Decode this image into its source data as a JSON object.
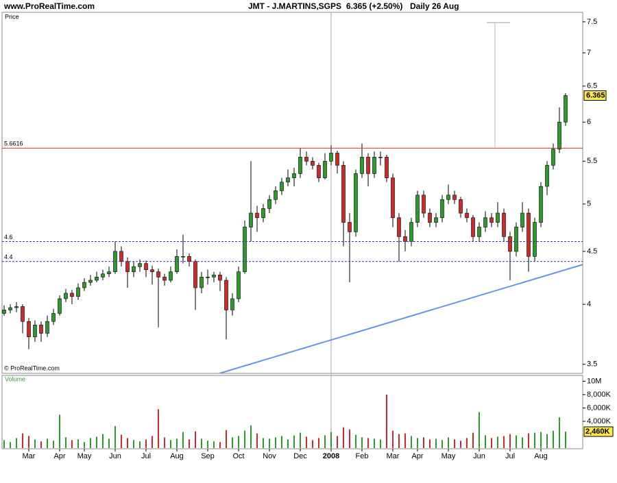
{
  "header": {
    "site": "www.ProRealTime.com",
    "symbol": "JMT - J.MARTINS,SGPS",
    "change": "6.365 (+2.50%)",
    "period": "Daily  26 Aug"
  },
  "chart_data": {
    "type": "candlestick",
    "price_label": "Price",
    "volume_label": "Volume",
    "copyright": "© ProRealTime.com",
    "categories": [
      null,
      null,
      null,
      null,
      "Mar",
      null,
      null,
      null,
      null,
      "Apr",
      null,
      null,
      null,
      "May",
      null,
      null,
      null,
      null,
      "Jun",
      null,
      null,
      null,
      null,
      "Jul",
      null,
      null,
      null,
      null,
      "Aug",
      null,
      null,
      null,
      null,
      "Sep",
      null,
      null,
      null,
      null,
      "Oct",
      null,
      null,
      null,
      null,
      "Nov",
      null,
      null,
      null,
      null,
      "Dec",
      null,
      null,
      null,
      null,
      "2008",
      null,
      null,
      null,
      null,
      "Feb",
      null,
      null,
      null,
      null,
      "Mar",
      null,
      null,
      null,
      "Apr",
      null,
      null,
      null,
      null,
      "May",
      null,
      null,
      null,
      null,
      "Jun",
      null,
      null,
      null,
      null,
      "Jul",
      null,
      null,
      null,
      null,
      "Aug",
      null,
      null,
      null,
      null
    ],
    "open": [
      3.92,
      3.95,
      3.97,
      3.98,
      3.85,
      3.72,
      3.82,
      3.75,
      3.85,
      3.92,
      4.05,
      4.1,
      4.07,
      4.15,
      4.2,
      4.22,
      4.25,
      4.28,
      4.3,
      4.5,
      4.4,
      4.3,
      4.35,
      4.38,
      4.32,
      4.3,
      4.25,
      4.22,
      4.3,
      4.45,
      4.45,
      4.4,
      4.15,
      4.25,
      4.25,
      4.27,
      4.22,
      3.95,
      4.05,
      4.3,
      4.75,
      4.9,
      4.85,
      4.95,
      5.05,
      5.15,
      5.25,
      5.3,
      5.35,
      5.55,
      5.5,
      5.45,
      5.3,
      5.5,
      5.6,
      5.45,
      4.8,
      4.7,
      5.35,
      5.55,
      5.35,
      5.55,
      5.55,
      5.3,
      4.85,
      4.65,
      4.6,
      4.8,
      5.1,
      4.9,
      4.8,
      4.85,
      5.05,
      5.1,
      5.05,
      4.9,
      4.85,
      4.65,
      4.75,
      4.85,
      4.8,
      4.9,
      4.65,
      4.5,
      4.75,
      4.9,
      4.45,
      4.8,
      5.2,
      5.45,
      5.65,
      6.0
    ],
    "high": [
      3.99,
      4.0,
      4.02,
      4.0,
      3.88,
      3.86,
      3.85,
      3.9,
      3.96,
      4.08,
      4.14,
      4.13,
      4.19,
      4.24,
      4.27,
      4.3,
      4.32,
      4.35,
      4.6,
      4.55,
      4.44,
      4.4,
      4.42,
      4.41,
      4.36,
      4.33,
      4.28,
      4.35,
      4.52,
      4.67,
      4.48,
      4.42,
      4.3,
      4.32,
      4.3,
      4.3,
      4.25,
      4.1,
      4.35,
      4.82,
      5.5,
      4.98,
      5.0,
      5.1,
      5.2,
      5.3,
      5.4,
      5.42,
      5.66,
      5.62,
      5.55,
      5.48,
      5.6,
      5.7,
      5.63,
      5.5,
      4.9,
      5.4,
      5.72,
      5.6,
      5.62,
      5.62,
      5.58,
      5.35,
      4.9,
      4.72,
      4.85,
      5.15,
      5.15,
      4.95,
      4.9,
      5.1,
      5.22,
      5.15,
      5.08,
      4.95,
      4.88,
      4.8,
      4.92,
      4.9,
      5.02,
      4.95,
      4.7,
      4.8,
      5.02,
      4.95,
      4.85,
      5.25,
      5.5,
      5.72,
      6.2,
      6.4
    ],
    "low": [
      3.9,
      3.92,
      3.93,
      3.75,
      3.62,
      3.68,
      3.68,
      3.72,
      3.82,
      3.9,
      4.02,
      4.0,
      4.04,
      4.12,
      4.17,
      4.2,
      4.22,
      4.25,
      4.28,
      4.35,
      4.15,
      4.25,
      4.3,
      4.25,
      4.18,
      3.8,
      4.17,
      4.2,
      4.28,
      4.38,
      4.35,
      3.95,
      4.1,
      4.18,
      4.2,
      4.12,
      3.7,
      3.9,
      4.02,
      4.28,
      4.6,
      4.7,
      4.8,
      4.9,
      5.0,
      5.1,
      5.2,
      5.2,
      5.3,
      5.45,
      5.4,
      5.25,
      5.28,
      5.45,
      5.35,
      4.55,
      4.2,
      4.65,
      5.3,
      5.2,
      5.3,
      5.45,
      5.25,
      4.75,
      4.4,
      4.5,
      4.55,
      4.75,
      4.85,
      4.75,
      4.75,
      4.8,
      5.0,
      5.0,
      4.85,
      4.8,
      4.6,
      4.6,
      4.7,
      4.75,
      4.75,
      4.6,
      4.22,
      4.45,
      4.7,
      4.3,
      4.4,
      4.75,
      5.1,
      5.4,
      5.6,
      5.95
    ],
    "close": [
      3.95,
      3.97,
      3.98,
      3.85,
      3.72,
      3.82,
      3.75,
      3.85,
      3.92,
      4.05,
      4.1,
      4.07,
      4.15,
      4.2,
      4.22,
      4.25,
      4.28,
      4.3,
      4.5,
      4.4,
      4.3,
      4.35,
      4.38,
      4.32,
      4.3,
      4.25,
      4.22,
      4.3,
      4.45,
      4.45,
      4.4,
      4.15,
      4.25,
      4.25,
      4.27,
      4.22,
      3.95,
      4.05,
      4.3,
      4.75,
      4.9,
      4.85,
      4.95,
      5.05,
      5.15,
      5.25,
      5.3,
      5.35,
      5.55,
      5.5,
      5.45,
      5.3,
      5.5,
      5.6,
      5.45,
      4.8,
      4.7,
      5.35,
      5.55,
      5.35,
      5.55,
      5.55,
      5.3,
      4.85,
      4.65,
      4.6,
      4.8,
      5.1,
      4.9,
      4.8,
      4.85,
      5.05,
      5.1,
      5.05,
      4.9,
      4.85,
      4.65,
      4.75,
      4.85,
      4.8,
      4.9,
      4.65,
      4.5,
      4.75,
      4.9,
      4.45,
      4.8,
      5.2,
      5.45,
      5.65,
      6.0,
      6.365
    ],
    "volume": [
      1200,
      900,
      1500,
      2200,
      1800,
      1300,
      1000,
      1400,
      1100,
      5000,
      1600,
      1200,
      1300,
      900,
      1500,
      1700,
      2100,
      1400,
      3300,
      2000,
      1500,
      1200,
      1000,
      1300,
      1800,
      5800,
      1600,
      1200,
      1400,
      2400,
      1300,
      2500,
      1400,
      1100,
      1000,
      900,
      2700,
      1600,
      1800,
      2600,
      3400,
      2200,
      1500,
      1400,
      1600,
      1800,
      1300,
      1900,
      2300,
      1700,
      1200,
      1500,
      1900,
      2400,
      1800,
      3100,
      2800,
      2000,
      1600,
      1500,
      1400,
      1300,
      8000,
      2600,
      2100,
      2200,
      1800,
      1500,
      1600,
      1300,
      1400,
      1200,
      1600,
      1300,
      1100,
      1500,
      2300,
      5400,
      1900,
      1500,
      1700,
      1800,
      2100,
      1900,
      1600,
      2200,
      2300,
      2400,
      2100,
      2600,
      4600,
      2460
    ],
    "last_price": 6.365,
    "last_volume": {
      "value": 2460,
      "label": "2,460K"
    },
    "up_color": "#2e9a2e",
    "down_color": "#cc2b2b",
    "log_scale": true,
    "ylim": [
      3.43,
      7.66
    ],
    "yticks": [
      3.5,
      4,
      4.5,
      5,
      5.5,
      6,
      6.5,
      7,
      7.5
    ],
    "vol_ylim": [
      0,
      10870
    ],
    "vol_ticks": [
      {
        "value": 10000,
        "label": "10M"
      },
      {
        "value": 8000,
        "label": "8,000K"
      },
      {
        "value": 6000,
        "label": "6,000K"
      },
      {
        "value": 4000,
        "label": "4,000K"
      }
    ],
    "levels": [
      {
        "value": 5.6616,
        "color": "#cc2b2b",
        "dashed": false
      },
      {
        "value": 4.6,
        "color": "#3a3aa8",
        "dashed": true
      },
      {
        "value": 4.4,
        "color": "#3a3aa8",
        "dashed": true
      }
    ],
    "trendline": {
      "x": [
        34.9,
        93.8
      ],
      "y": [
        3.43,
        4.37
      ],
      "color": "#6495ed"
    }
  }
}
